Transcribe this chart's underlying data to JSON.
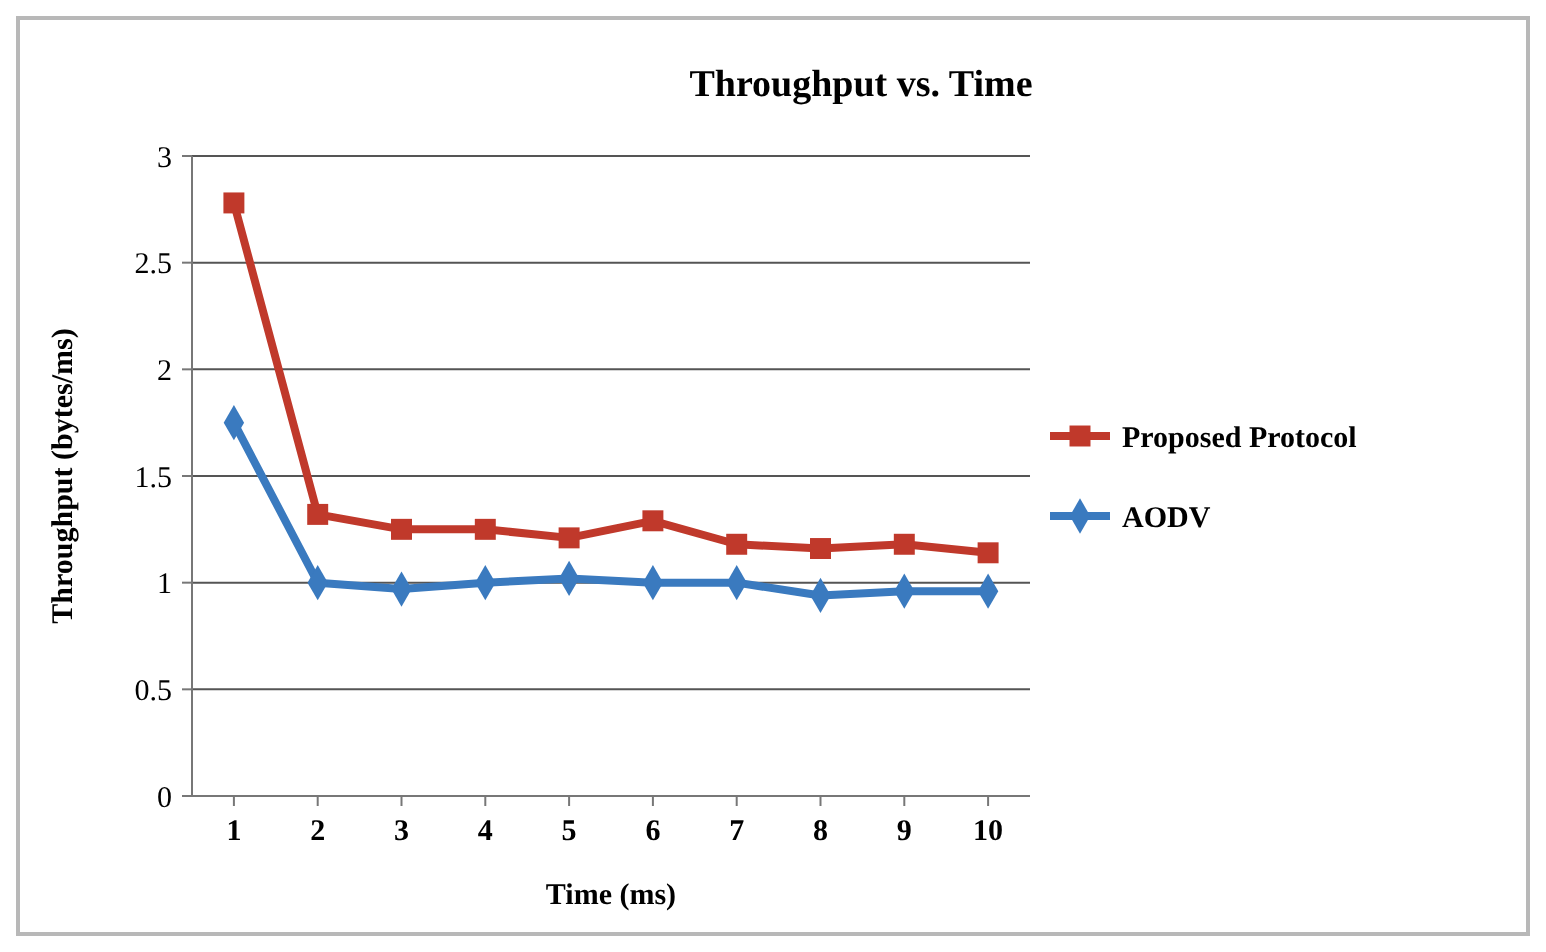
{
  "chart_data": {
    "type": "line",
    "title": "Throughput vs. Time",
    "xlabel": "Time (ms)",
    "ylabel": "Throughput (bytes/ms)",
    "categories": [
      "1",
      "2",
      "3",
      "4",
      "5",
      "6",
      "7",
      "8",
      "9",
      "10"
    ],
    "series": [
      {
        "name": "Proposed Protocol",
        "color": "#c0392b",
        "marker": "square",
        "values": [
          2.78,
          1.32,
          1.25,
          1.25,
          1.21,
          1.29,
          1.18,
          1.16,
          1.18,
          1.14
        ]
      },
      {
        "name": "AODV",
        "color": "#3a7abf",
        "marker": "diamond",
        "values": [
          1.75,
          1.0,
          0.97,
          1.0,
          1.02,
          1.0,
          1.0,
          0.94,
          0.96,
          0.96
        ]
      }
    ],
    "ylim": [
      0,
      3
    ],
    "yticks": [
      0,
      0.5,
      1,
      1.5,
      2,
      2.5,
      3
    ],
    "grid": "y",
    "legend": "right"
  }
}
